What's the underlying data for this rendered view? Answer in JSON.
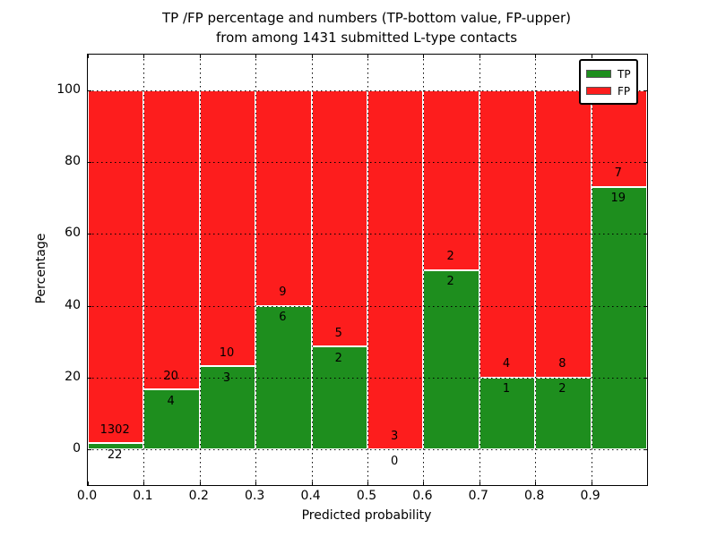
{
  "chart_data": {
    "type": "bar",
    "stacked": true,
    "title_line1": "TP /FP percentage and numbers (TP-bottom value, FP-upper)",
    "title_line2": "from among 1431 submitted L-type contacts",
    "xlabel": "Predicted probability",
    "ylabel": "Percentage",
    "total_contacts": 1431,
    "x_tick_labels": [
      "0.0",
      "0.1",
      "0.2",
      "0.3",
      "0.4",
      "0.5",
      "0.6",
      "0.7",
      "0.8",
      "0.9"
    ],
    "y_tick_labels": [
      "0",
      "20",
      "40",
      "60",
      "80",
      "100"
    ],
    "y_ticks": [
      0,
      20,
      40,
      60,
      80,
      100
    ],
    "xlim": [
      0.0,
      1.0
    ],
    "ylim": [
      -10,
      110
    ],
    "grid": "dotted",
    "legend_position": "upper right",
    "legend": [
      {
        "label": "TP",
        "color": "#1e8e1e"
      },
      {
        "label": "FP",
        "color": "#fd1d1d"
      }
    ],
    "series_note": "Each 0.1-wide probability bin stacks TP% (green, bottom) and FP% (red, top) to 100%; numbers annotate raw counts (TP below boundary, FP above)",
    "bins": [
      {
        "range": "0.0-0.1",
        "tp": 22,
        "fp": 1302,
        "tp_pct": 1.66
      },
      {
        "range": "0.1-0.2",
        "tp": 4,
        "fp": 20,
        "tp_pct": 16.67
      },
      {
        "range": "0.2-0.3",
        "tp": 3,
        "fp": 10,
        "tp_pct": 23.08
      },
      {
        "range": "0.3-0.4",
        "tp": 6,
        "fp": 9,
        "tp_pct": 40.0
      },
      {
        "range": "0.4-0.5",
        "tp": 2,
        "fp": 5,
        "tp_pct": 28.57
      },
      {
        "range": "0.5-0.6",
        "tp": 0,
        "fp": 3,
        "tp_pct": 0.0
      },
      {
        "range": "0.6-0.7",
        "tp": 2,
        "fp": 2,
        "tp_pct": 50.0
      },
      {
        "range": "0.7-0.8",
        "tp": 1,
        "fp": 4,
        "tp_pct": 20.0
      },
      {
        "range": "0.8-0.9",
        "tp": 2,
        "fp": 8,
        "tp_pct": 20.0
      },
      {
        "range": "0.9-1.0",
        "tp": 19,
        "fp": 7,
        "tp_pct": 73.08
      }
    ]
  }
}
